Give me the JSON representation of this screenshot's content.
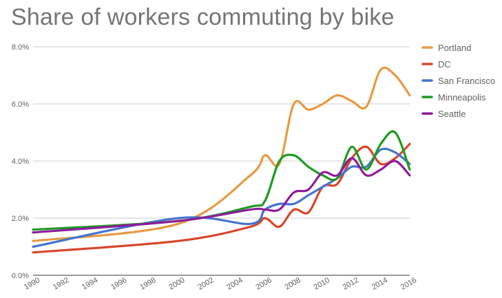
{
  "chart_data": {
    "type": "line",
    "title": "Share of workers commuting by bike",
    "xlabel": "",
    "ylabel": "",
    "xlim": [
      1990,
      2016
    ],
    "ylim": [
      0,
      8
    ],
    "yticks": [
      0,
      2,
      4,
      6,
      8
    ],
    "ytick_labels": [
      "0.0%",
      "2.0%",
      "4.0%",
      "6.0%",
      "8.0%"
    ],
    "xticks": [
      1990,
      1992,
      1994,
      1996,
      1998,
      2000,
      2002,
      2004,
      2006,
      2008,
      2010,
      2012,
      2014,
      2016
    ],
    "xtick_labels": [
      "1990",
      "1992",
      "1994",
      "1996",
      "1998",
      "2000",
      "2002",
      "2004",
      "2006",
      "2008",
      "2010",
      "2012",
      "2014",
      "2016"
    ],
    "grid": true,
    "legend_position": "right",
    "series": [
      {
        "name": "Portland",
        "color": "#E69A42",
        "x": [
          1990,
          2000,
          2005,
          2006,
          2007,
          2008,
          2009,
          2010,
          2011,
          2012,
          2013,
          2014,
          2015,
          2016
        ],
        "values": [
          1.2,
          1.8,
          3.5,
          4.2,
          3.9,
          6.0,
          5.8,
          6.0,
          6.3,
          6.1,
          5.9,
          7.2,
          7.0,
          6.3
        ]
      },
      {
        "name": "DC",
        "color": "#D9452B",
        "x": [
          1990,
          2000,
          2005,
          2006,
          2007,
          2008,
          2009,
          2010,
          2011,
          2012,
          2013,
          2014,
          2015,
          2016
        ],
        "values": [
          0.8,
          1.2,
          1.7,
          2.0,
          1.7,
          2.3,
          2.2,
          3.1,
          3.2,
          4.1,
          4.5,
          3.9,
          4.1,
          4.6
        ]
      },
      {
        "name": "San Francisco",
        "color": "#4374CF",
        "x": [
          1990,
          2000,
          2005,
          2006,
          2007,
          2008,
          2009,
          2010,
          2011,
          2012,
          2013,
          2014,
          2015,
          2016
        ],
        "values": [
          1.0,
          2.0,
          1.8,
          2.3,
          2.5,
          2.5,
          2.8,
          3.1,
          3.4,
          3.8,
          3.8,
          4.4,
          4.3,
          3.9
        ]
      },
      {
        "name": "Minneapolis",
        "color": "#1E9A22",
        "x": [
          1990,
          2000,
          2005,
          2006,
          2007,
          2008,
          2009,
          2010,
          2011,
          2012,
          2013,
          2014,
          2015,
          2016
        ],
        "values": [
          1.6,
          1.9,
          2.4,
          2.6,
          4.0,
          4.2,
          3.8,
          3.5,
          3.4,
          4.5,
          3.7,
          4.6,
          5.0,
          3.7
        ]
      },
      {
        "name": "Seattle",
        "color": "#8F1C9B",
        "x": [
          1990,
          2000,
          2005,
          2006,
          2007,
          2008,
          2009,
          2010,
          2011,
          2012,
          2013,
          2014,
          2015,
          2016
        ],
        "values": [
          1.5,
          1.9,
          2.3,
          2.3,
          2.3,
          2.9,
          3.0,
          3.6,
          3.5,
          4.1,
          3.5,
          3.7,
          4.0,
          3.5
        ]
      }
    ]
  }
}
